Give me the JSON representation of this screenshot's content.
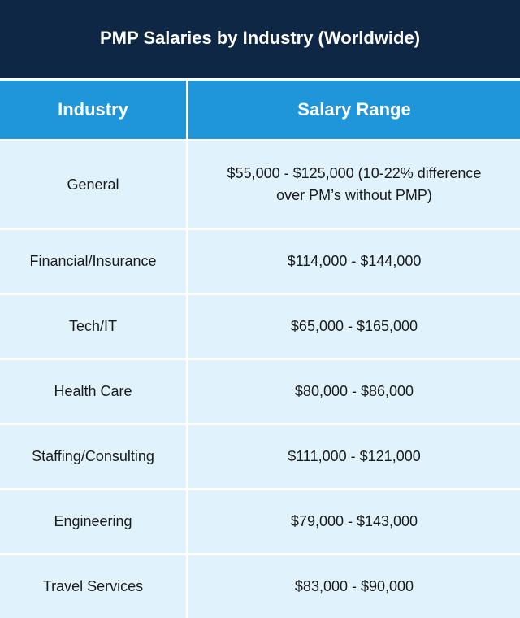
{
  "title": "PMP Salaries by Industry (Worldwide)",
  "chart_data": {
    "type": "table",
    "title": "PMP Salaries by Industry (Worldwide)",
    "columns": [
      "Industry",
      "Salary Range"
    ],
    "rows": [
      {
        "industry": "General",
        "salary": "$55,000 - $125,000 (10-22% difference over PM’s without PMP)"
      },
      {
        "industry": "Financial/Insurance",
        "salary": "$114,000 - $144,000"
      },
      {
        "industry": "Tech/IT",
        "salary": "$65,000 - $165,000"
      },
      {
        "industry": "Health Care",
        "salary": "$80,000 - $86,000"
      },
      {
        "industry": "Staffing/Consulting",
        "salary": "$111,000 - $121,000"
      },
      {
        "industry": "Engineering",
        "salary": "$79,000 - $143,000"
      },
      {
        "industry": "Travel Services",
        "salary": "$83,000 - $90,000"
      }
    ]
  },
  "colors": {
    "title_bg": "#0e2744",
    "header_bg": "#1f96d9",
    "cell_bg": "#e0f2fb"
  }
}
